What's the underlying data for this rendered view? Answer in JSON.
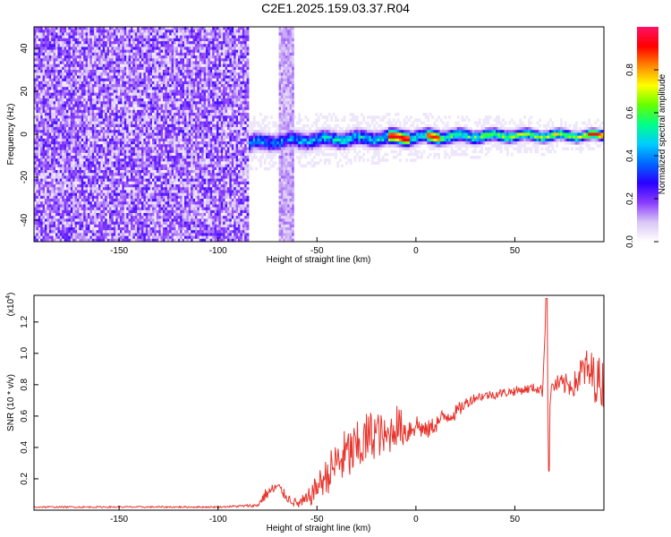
{
  "figure": {
    "title": "C2E1.2025.159.03.37.R04"
  },
  "chart_data": [
    {
      "type": "heatmap",
      "xlabel": "Height of straight line (km)",
      "ylabel": "Frequency (Hz)",
      "xlim": [
        -193,
        95
      ],
      "ylim": [
        -50,
        50
      ],
      "xticks": [
        -150,
        -100,
        -50,
        0,
        50
      ],
      "xtick_labels": [
        "-150",
        "-100",
        "-50",
        "0",
        "50"
      ],
      "yticks": [
        -40,
        -20,
        0,
        20,
        40
      ],
      "ytick_labels": [
        "-40",
        "-20",
        "0",
        "20",
        "40"
      ],
      "colorbar": {
        "label": "Normalized spectral amplitude",
        "range": [
          0,
          1
        ],
        "ticks": [
          0.0,
          0.2,
          0.4,
          0.6,
          0.8
        ],
        "tick_labels": [
          "0.0",
          "0.2",
          "0.4",
          "0.6",
          "0.8"
        ],
        "colormap": [
          "#ffffff",
          "#d9c6f5",
          "#8a3cff",
          "#2a00ff",
          "#0066ff",
          "#00ccff",
          "#00ff88",
          "#66ff00",
          "#ffff00",
          "#ff8800",
          "#ff0000",
          "#ff1166"
        ]
      },
      "regions": [
        {
          "description": "broadband noise",
          "x": [
            -193,
            -85
          ],
          "y": [
            -50,
            50
          ],
          "level": 0.2
        },
        {
          "description": "noise strip",
          "x": [
            -70,
            -62
          ],
          "y": [
            -50,
            50
          ],
          "level": 0.12
        },
        {
          "description": "signal ridge",
          "x": [
            -85,
            95
          ],
          "y_center": [
            -4,
            0
          ],
          "level": 0.8
        }
      ],
      "grid": false
    },
    {
      "type": "line",
      "xlabel": "Height of straight line (km)",
      "ylabel": "SNR (10 * v/v)",
      "y_multiplier_label": "(x10",
      "y_multiplier_exp": "4",
      "y_multiplier_close": ")",
      "xlim": [
        -193,
        95
      ],
      "ylim": [
        0,
        1.37
      ],
      "xticks": [
        -150,
        -100,
        -50,
        0,
        50
      ],
      "xtick_labels": [
        "-150",
        "-100",
        "-50",
        "0",
        "50"
      ],
      "yticks": [
        0.2,
        0.4,
        0.6,
        0.8,
        1.0,
        1.2
      ],
      "ytick_labels": [
        "0.2",
        "0.4",
        "0.6",
        "0.8",
        "1.0",
        "1.2"
      ],
      "color": "#e8342c",
      "series": [
        {
          "x": [
            -193,
            -150,
            -100,
            -80,
            -76,
            -70,
            -65,
            -60,
            -55,
            -50,
            -45,
            -40,
            -35,
            -30,
            -25,
            -20,
            -15,
            -10,
            -5,
            0,
            5,
            10,
            15,
            20,
            25,
            30,
            40,
            50,
            60,
            64,
            66,
            67,
            68,
            70,
            80,
            85,
            90,
            95
          ],
          "y": [
            0.02,
            0.02,
            0.02,
            0.03,
            0.1,
            0.15,
            0.08,
            0.04,
            0.06,
            0.15,
            0.22,
            0.3,
            0.35,
            0.38,
            0.45,
            0.5,
            0.45,
            0.55,
            0.5,
            0.55,
            0.5,
            0.55,
            0.6,
            0.62,
            0.68,
            0.72,
            0.74,
            0.76,
            0.78,
            0.76,
            1.35,
            0.25,
            0.76,
            0.8,
            0.8,
            0.9,
            0.85,
            0.8
          ],
          "noise_amplitude": [
            0.005,
            0.005,
            0.005,
            0.01,
            0.04,
            0.04,
            0.03,
            0.03,
            0.06,
            0.08,
            0.12,
            0.16,
            0.18,
            0.18,
            0.18,
            0.16,
            0.12,
            0.14,
            0.1,
            0.08,
            0.06,
            0.06,
            0.06,
            0.05,
            0.04,
            0.03,
            0.03,
            0.03,
            0.03,
            0.04,
            0.0,
            0.0,
            0.05,
            0.06,
            0.08,
            0.14,
            0.16,
            0.16
          ]
        }
      ],
      "grid": false
    }
  ]
}
